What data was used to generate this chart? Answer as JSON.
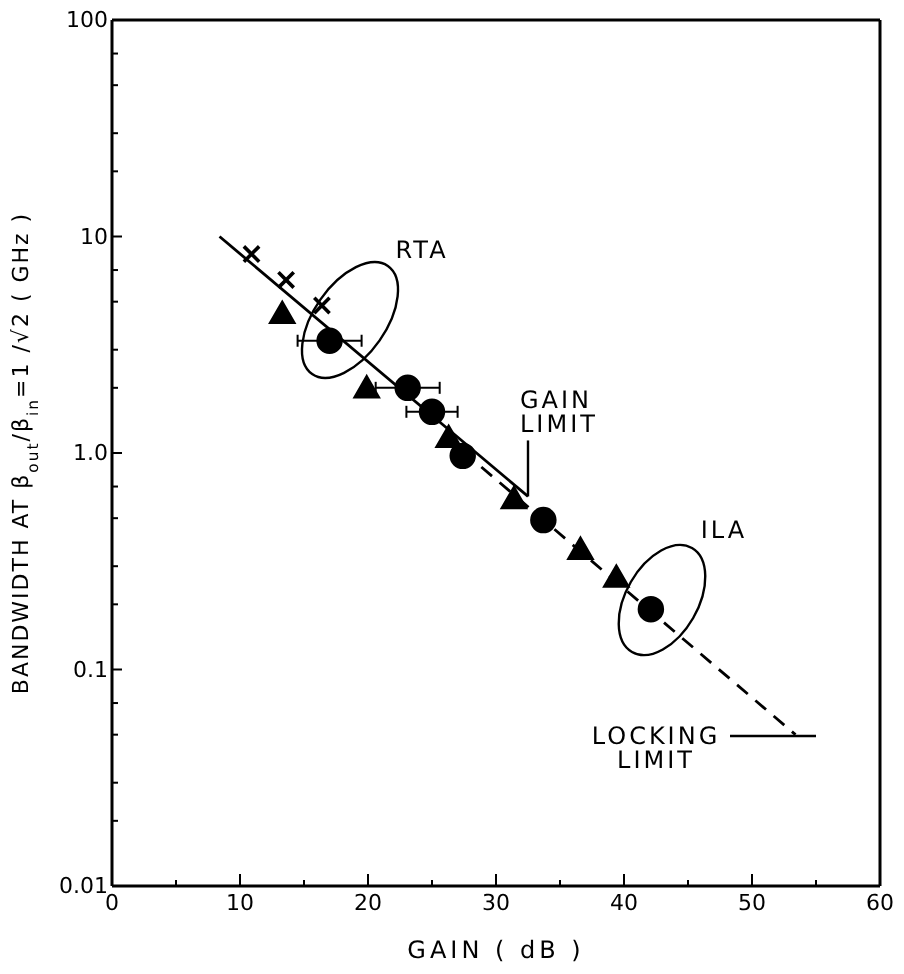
{
  "chart_data": {
    "type": "scatter",
    "xlabel": "GAIN  ( dB )",
    "ylabel": "BANDWIDTH AT  β$_{out}$/β$_{in}$=1 /√2  ( GHz )",
    "log": "y",
    "grid": false,
    "xlim": [
      0,
      60
    ],
    "xticks": [
      0,
      {
        "value": 5,
        "label": null
      },
      10,
      {
        "value": 15,
        "label": null
      },
      20,
      {
        "value": 25,
        "label": null
      },
      30,
      {
        "value": 35,
        "label": null
      },
      40,
      {
        "value": 45,
        "label": null
      },
      50,
      {
        "value": 55,
        "label": null
      },
      60
    ],
    "ylim": [
      0.01,
      100
    ],
    "yticks": [
      0.01,
      {
        "value": 0.02,
        "label": null
      },
      {
        "value": 0.03,
        "label": null
      },
      {
        "value": 0.05,
        "label": null
      },
      {
        "value": 0.07,
        "label": null
      },
      0.1,
      {
        "value": 0.2,
        "label": null
      },
      {
        "value": 0.3,
        "label": null
      },
      {
        "value": 0.5,
        "label": null
      },
      {
        "value": 0.7,
        "label": null
      },
      {
        "value": 1,
        "label": "1.0"
      },
      {
        "value": 2,
        "label": null
      },
      {
        "value": 3,
        "label": null
      },
      {
        "value": 5,
        "label": null
      },
      {
        "value": 7,
        "label": null
      },
      {
        "value": 10,
        "label": "10"
      },
      {
        "value": 20,
        "label": null
      },
      {
        "value": 30,
        "label": null
      },
      {
        "value": 50,
        "label": null
      },
      {
        "value": 70,
        "label": null
      },
      {
        "value": 100,
        "label": "100"
      }
    ],
    "series": [
      {
        "type": "line",
        "color": "#000000",
        "marker": "none",
        "line_style": "solid",
        "x": [
          8.4,
          32.5
        ],
        "values": [
          10,
          0.63
        ]
      },
      {
        "type": "line",
        "color": "#000000",
        "marker": "none",
        "line_style": "dashed",
        "x": [
          26,
          53.4
        ],
        "values": [
          1.2,
          0.05
        ]
      },
      {
        "color": "#000000",
        "marker": "cross",
        "x": [
          10.9,
          13.6,
          16.4
        ],
        "values": [
          8.3,
          6.3,
          4.8
        ]
      },
      {
        "color": "#000000",
        "marker": "triangle",
        "x": [
          13.3,
          19.9,
          26.3
        ],
        "values": [
          4.3,
          1.95,
          1.15
        ]
      },
      {
        "color": "#000000",
        "marker": "circle",
        "x": [
          17,
          23.1,
          25
        ],
        "values": [
          3.3,
          2,
          1.55
        ],
        "xerrors": [
          2.5,
          2.5,
          2
        ]
      },
      {
        "color": "#000000",
        "marker": "circle",
        "x": [
          27.4,
          33.7,
          42.1
        ],
        "values": [
          0.97,
          0.49,
          0.19
        ]
      },
      {
        "color": "#000000",
        "marker": "triangle",
        "x": [
          31.4,
          36.6,
          39.4
        ],
        "values": [
          0.6,
          0.35,
          0.26
        ]
      }
    ],
    "annotations": [
      "RTA",
      "ILA",
      {
        "text": "GAIN\nLIMIT",
        "x": 32.5,
        "y": 0.63
      },
      "LOCKING\nLIMIT"
    ]
  }
}
